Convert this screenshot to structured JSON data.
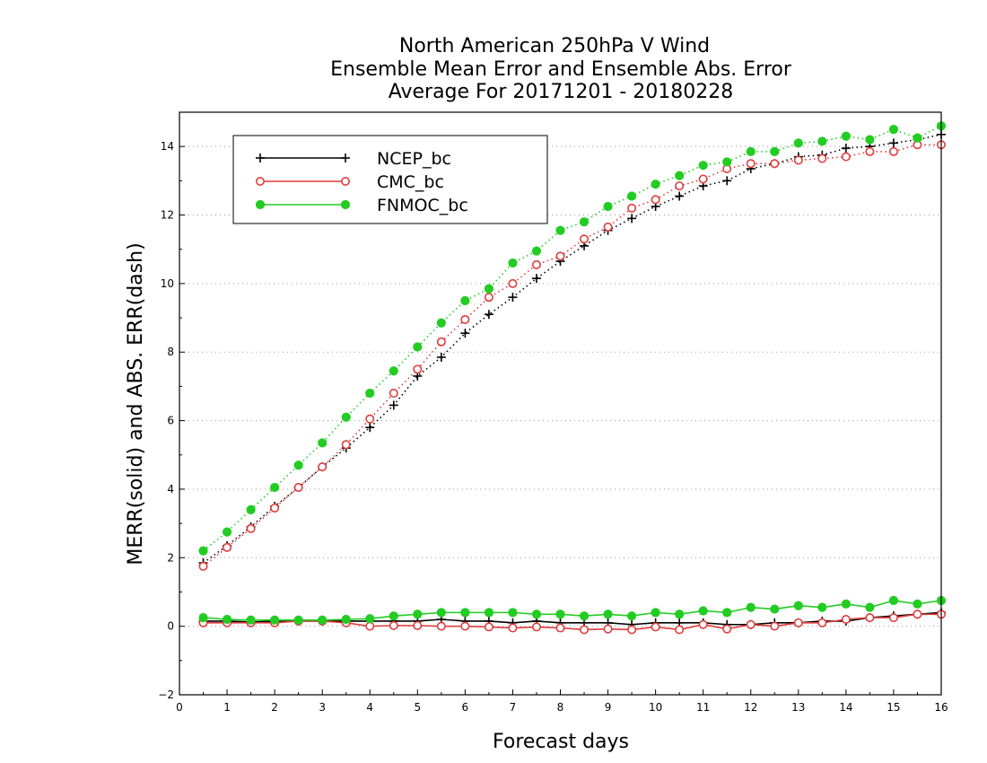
{
  "chart_data": {
    "type": "line",
    "title_lines": [
      "North American 250hPa V Wind",
      "Ensemble Mean Error and Ensemble Abs. Error",
      "Average For 20171201 - 20180228"
    ],
    "xlabel": "Forecast days",
    "ylabel": "MERR(solid) and ABS. ERR(dash)",
    "xlim": [
      0,
      16
    ],
    "ylim": [
      -2,
      15
    ],
    "x_ticks": [
      0,
      1,
      2,
      3,
      4,
      5,
      6,
      7,
      8,
      9,
      10,
      11,
      12,
      13,
      14,
      15,
      16
    ],
    "y_ticks": [
      -2,
      0,
      2,
      4,
      6,
      8,
      10,
      12,
      14
    ],
    "grid": "horizontal dotted",
    "legend_position": "top-left",
    "x": [
      0.5,
      1,
      1.5,
      2,
      2.5,
      3,
      3.5,
      4,
      4.5,
      5,
      5.5,
      6,
      6.5,
      7,
      7.5,
      8,
      8.5,
      9,
      9.5,
      10,
      10.5,
      11,
      11.5,
      12,
      12.5,
      13,
      13.5,
      14,
      14.5,
      15,
      15.5,
      16
    ],
    "series": [
      {
        "name": "NCEP_bc",
        "color": "#000000",
        "marker": "plus",
        "mean_error": [
          0.15,
          0.15,
          0.12,
          0.15,
          0.15,
          0.15,
          0.15,
          0.15,
          0.15,
          0.15,
          0.2,
          0.15,
          0.15,
          0.1,
          0.15,
          0.1,
          0.1,
          0.1,
          0.05,
          0.1,
          0.1,
          0.1,
          0.05,
          0.05,
          0.1,
          0.1,
          0.15,
          0.15,
          0.25,
          0.3,
          0.35,
          0.4
        ],
        "abs_error": [
          1.85,
          2.35,
          2.9,
          3.5,
          4.05,
          4.65,
          5.2,
          5.8,
          6.45,
          7.3,
          7.85,
          8.55,
          9.1,
          9.6,
          10.15,
          10.65,
          11.1,
          11.55,
          11.9,
          12.25,
          12.55,
          12.85,
          13.0,
          13.35,
          13.5,
          13.7,
          13.75,
          13.95,
          14.0,
          14.1,
          14.2,
          14.35
        ]
      },
      {
        "name": "CMC_bc",
        "color": "#e03c3c",
        "marker": "open-circle",
        "mean_error": [
          0.1,
          0.1,
          0.1,
          0.1,
          0.15,
          0.15,
          0.1,
          0.0,
          0.02,
          0.02,
          0.0,
          0.0,
          -0.02,
          -0.05,
          -0.02,
          -0.05,
          -0.1,
          -0.08,
          -0.1,
          -0.02,
          -0.1,
          0.05,
          -0.08,
          0.05,
          0.0,
          0.1,
          0.1,
          0.2,
          0.25,
          0.25,
          0.35,
          0.35
        ],
        "abs_error": [
          1.75,
          2.3,
          2.85,
          3.45,
          4.05,
          4.65,
          5.3,
          6.05,
          6.8,
          7.5,
          8.3,
          8.95,
          9.6,
          10.0,
          10.55,
          10.8,
          11.3,
          11.65,
          12.2,
          12.45,
          12.85,
          13.05,
          13.35,
          13.5,
          13.5,
          13.6,
          13.65,
          13.7,
          13.85,
          13.85,
          14.05,
          14.05
        ]
      },
      {
        "name": "FNMOC_bc",
        "color": "#22cc22",
        "marker": "filled-circle",
        "mean_error": [
          0.25,
          0.2,
          0.18,
          0.18,
          0.18,
          0.18,
          0.2,
          0.22,
          0.3,
          0.35,
          0.4,
          0.4,
          0.4,
          0.4,
          0.35,
          0.35,
          0.3,
          0.35,
          0.3,
          0.4,
          0.35,
          0.45,
          0.4,
          0.55,
          0.5,
          0.6,
          0.55,
          0.65,
          0.55,
          0.75,
          0.65,
          0.75
        ],
        "abs_error": [
          2.2,
          2.75,
          3.4,
          4.05,
          4.7,
          5.35,
          6.1,
          6.8,
          7.45,
          8.15,
          8.85,
          9.5,
          9.85,
          10.6,
          10.95,
          11.55,
          11.8,
          12.25,
          12.55,
          12.9,
          13.15,
          13.45,
          13.55,
          13.85,
          13.85,
          14.1,
          14.15,
          14.3,
          14.2,
          14.5,
          14.25,
          14.6
        ]
      }
    ]
  }
}
